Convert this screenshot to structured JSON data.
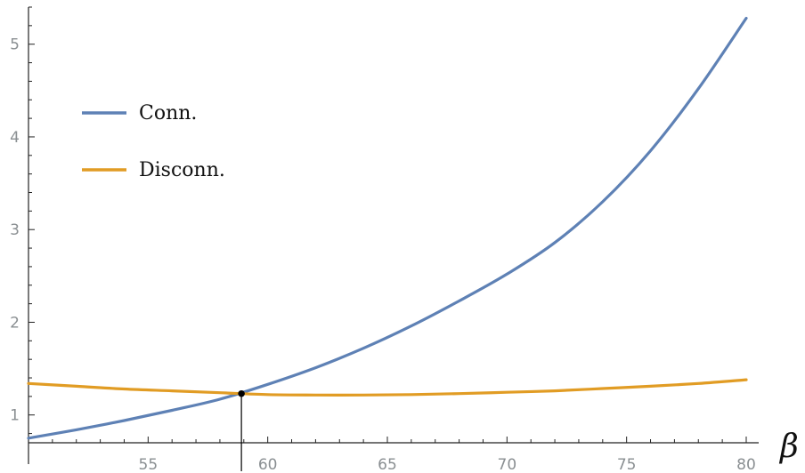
{
  "chart_data": {
    "type": "line",
    "title": "",
    "xlabel": "β",
    "ylabel": "",
    "xlim": [
      50,
      80
    ],
    "ylim": [
      0.7,
      5.4
    ],
    "x_ticks": [
      {
        "value": 55,
        "label": "55"
      },
      {
        "value": 60,
        "label": "60"
      },
      {
        "value": 65,
        "label": "65"
      },
      {
        "value": 70,
        "label": "70"
      },
      {
        "value": 75,
        "label": "75"
      },
      {
        "value": 80,
        "label": "80"
      }
    ],
    "y_ticks": [
      {
        "value": 1,
        "label": "1"
      },
      {
        "value": 2,
        "label": "2"
      },
      {
        "value": 3,
        "label": "3"
      },
      {
        "value": 4,
        "label": "4"
      },
      {
        "value": 5,
        "label": "5"
      }
    ],
    "grid": false,
    "legend_position": "top-left",
    "series": [
      {
        "name": "Conn.",
        "color": "#5e81b5",
        "x": [
          50,
          52,
          54,
          56,
          58,
          60,
          62,
          64,
          66,
          68,
          70,
          72,
          74,
          76,
          78,
          80
        ],
        "y": [
          0.75,
          0.84,
          0.94,
          1.05,
          1.17,
          1.33,
          1.51,
          1.72,
          1.96,
          2.23,
          2.52,
          2.86,
          3.3,
          3.85,
          4.52,
          5.28
        ]
      },
      {
        "name": "Disconn.",
        "color": "#e19c24",
        "x": [
          50,
          52,
          54,
          56,
          58,
          60,
          62,
          64,
          66,
          68,
          70,
          72,
          74,
          76,
          78,
          80
        ],
        "y": [
          1.34,
          1.31,
          1.28,
          1.26,
          1.24,
          1.22,
          1.215,
          1.215,
          1.22,
          1.23,
          1.245,
          1.26,
          1.285,
          1.31,
          1.34,
          1.38
        ]
      }
    ],
    "marker": {
      "x": 58.9,
      "y": 1.23,
      "color": "#000000"
    }
  }
}
